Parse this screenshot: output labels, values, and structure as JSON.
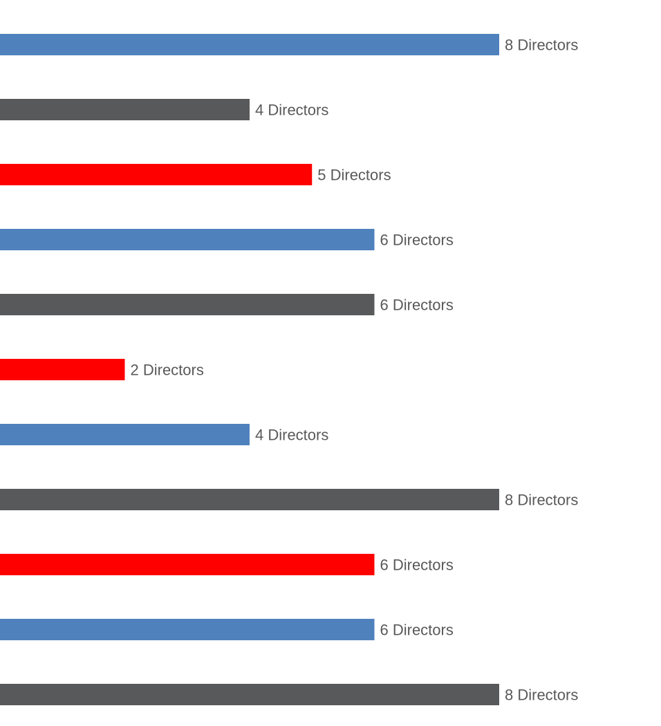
{
  "chart_data": {
    "type": "bar",
    "orientation": "horizontal",
    "xlim": [
      0,
      8
    ],
    "grid": false,
    "legend": "none",
    "bars": [
      {
        "value": 8,
        "label": "8 Directors",
        "color": "#4f81bd"
      },
      {
        "value": 4,
        "label": "4 Directors",
        "color": "#58595b"
      },
      {
        "value": 5,
        "label": "5 Directors",
        "color": "#ff0000"
      },
      {
        "value": 6,
        "label": "6 Directors",
        "color": "#4f81bd"
      },
      {
        "value": 6,
        "label": "6 Directors",
        "color": "#58595b"
      },
      {
        "value": 2,
        "label": "2 Directors",
        "color": "#ff0000"
      },
      {
        "value": 4,
        "label": "4 Directors",
        "color": "#4f81bd"
      },
      {
        "value": 8,
        "label": "8 Directors",
        "color": "#58595b"
      },
      {
        "value": 6,
        "label": "6 Directors",
        "color": "#ff0000"
      },
      {
        "value": 6,
        "label": "6 Directors",
        "color": "#4f81bd"
      },
      {
        "value": 8,
        "label": "8 Directors",
        "color": "#58595b"
      }
    ]
  }
}
